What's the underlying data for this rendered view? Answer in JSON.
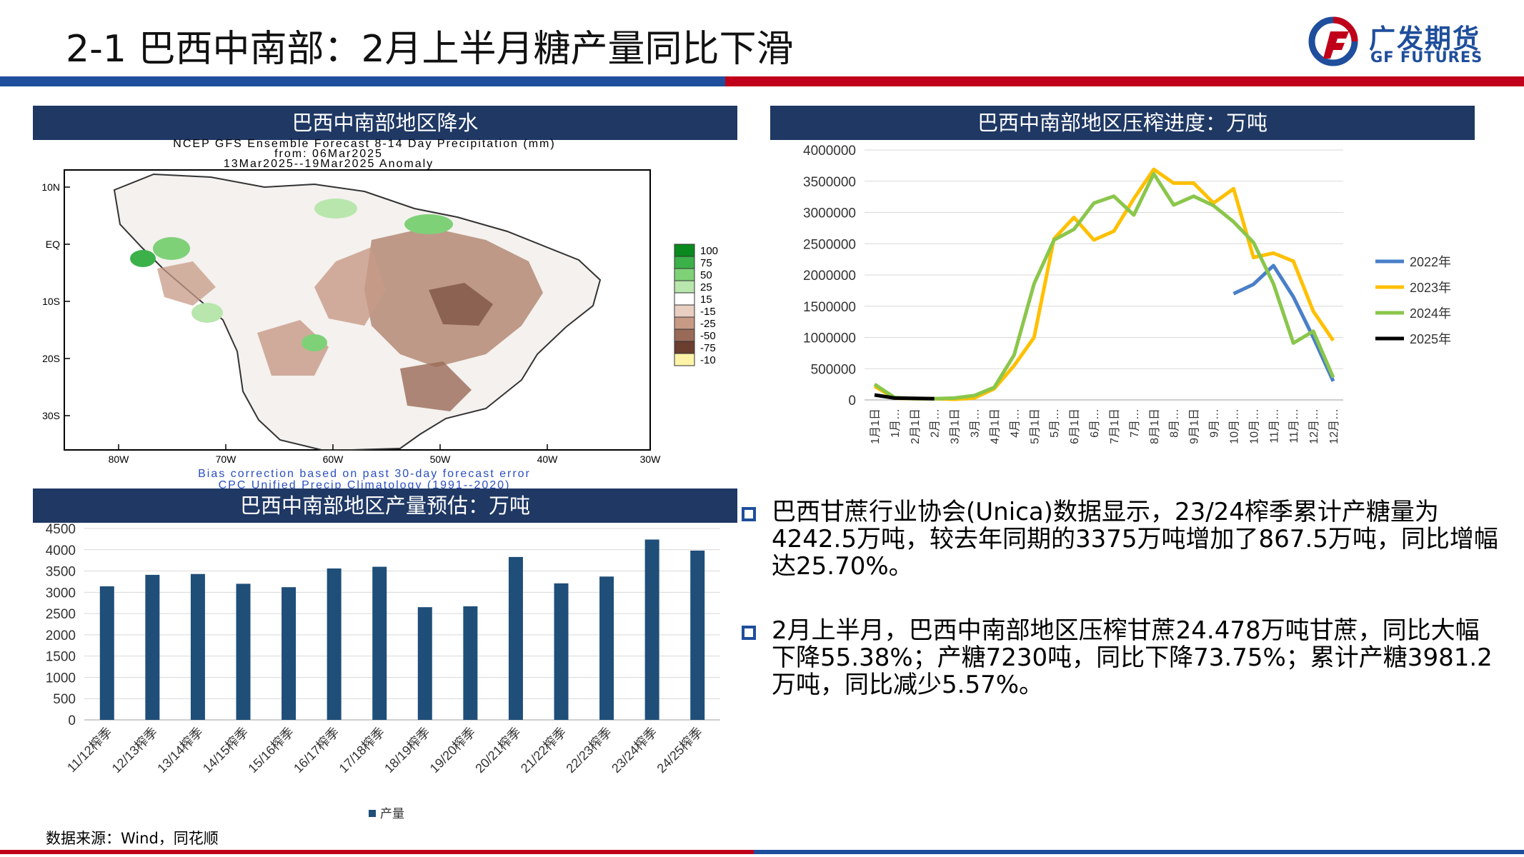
{
  "slide": {
    "title": "2-1 巴西中南部：2月上半月糖产量同比下滑",
    "logo_cn": "广发期货",
    "logo_en": "GF FUTURES",
    "source": "数据来源：Wind，同花顺"
  },
  "colors": {
    "blue": "#1f4e9c",
    "red": "#c0001a",
    "panel": "#1f3864",
    "bar": "#1f4e79"
  },
  "precip_panel": {
    "header": "巴西中南部地区降水",
    "map_title_1": "NCEP GFS Ensemble Forecast 8-14 Day Precipitation (mm)",
    "map_title_2": "from: 06Mar2025",
    "map_title_3": "13Mar2025--19Mar2025 Anomaly",
    "lat_labels": [
      "10N",
      "EQ",
      "10S",
      "20S",
      "30S"
    ],
    "lon_labels": [
      "80W",
      "70W",
      "60W",
      "50W",
      "40W",
      "30W"
    ],
    "legend": [
      {
        "label": "100",
        "color": "#0a8a1e"
      },
      {
        "label": "75",
        "color": "#3cb14a"
      },
      {
        "label": "50",
        "color": "#7fd178"
      },
      {
        "label": "25",
        "color": "#b8e6ad"
      },
      {
        "label": "15",
        "color": "#ffffff"
      },
      {
        "label": "-15",
        "color": "#e8cfc2"
      },
      {
        "label": "-25",
        "color": "#c79a86"
      },
      {
        "label": "-50",
        "color": "#9a6a58"
      },
      {
        "label": "-75",
        "color": "#6b3e30"
      },
      {
        "label": "-10",
        "color": "#fff3a8"
      }
    ],
    "footer_1": "Bias correction based on past 30-day forecast error",
    "footer_2": "CPC Unified Precip Climatology (1991--2020)"
  },
  "crush_panel": {
    "header": "巴西中南部地区压榨进度：万吨"
  },
  "production_panel": {
    "header": "巴西中南部地区产量预估：万吨"
  },
  "chart_data": [
    {
      "type": "line",
      "x": [
        "1月1日",
        "1月…",
        "2月1日",
        "2月…",
        "3月1日",
        "3月…",
        "4月1日",
        "4月…",
        "5月1日",
        "5月…",
        "6月1日",
        "6月…",
        "7月1日",
        "7月…",
        "8月1日",
        "8月…",
        "9月1日",
        "9月…",
        "10月…",
        "10月…",
        "11月…",
        "11月…",
        "12月…",
        "12月…"
      ],
      "ylim": [
        0,
        4000000
      ],
      "yticks": [
        "4000000",
        "3500000",
        "3000000",
        "2500000",
        "2000000",
        "1500000",
        "1000000",
        "500000",
        "0"
      ],
      "legend_position": "right",
      "grid": true,
      "series": [
        {
          "name": "2022年",
          "color": "#4a7fc9",
          "values": [
            null,
            null,
            null,
            null,
            null,
            null,
            null,
            null,
            null,
            null,
            null,
            null,
            null,
            null,
            null,
            null,
            null,
            null,
            1700000,
            1850000,
            2150000,
            1650000,
            1000000,
            300000
          ]
        },
        {
          "name": "2023年",
          "color": "#ffc000",
          "values": [
            220000,
            30000,
            20000,
            20000,
            10000,
            30000,
            180000,
            550000,
            1000000,
            2580000,
            2920000,
            2560000,
            2700000,
            3220000,
            3690000,
            3470000,
            3470000,
            3150000,
            3380000,
            2280000,
            2350000,
            2220000,
            1420000,
            950000
          ]
        },
        {
          "name": "2024年",
          "color": "#8ac64b",
          "values": [
            250000,
            40000,
            20000,
            20000,
            30000,
            70000,
            200000,
            720000,
            1860000,
            2560000,
            2730000,
            3150000,
            3260000,
            2960000,
            3620000,
            3120000,
            3260000,
            3110000,
            2850000,
            2520000,
            1860000,
            910000,
            1100000,
            360000
          ]
        },
        {
          "name": "2025年",
          "color": "#000000",
          "values": [
            80000,
            30000,
            25000,
            20000,
            null,
            null,
            null,
            null,
            null,
            null,
            null,
            null,
            null,
            null,
            null,
            null,
            null,
            null,
            null,
            null,
            null,
            null,
            null,
            null
          ]
        }
      ]
    },
    {
      "type": "bar",
      "categories": [
        "11/12榨季",
        "12/13榨季",
        "13/14榨季",
        "14/15榨季",
        "15/16榨季",
        "16/17榨季",
        "17/18榨季",
        "18/19榨季",
        "19/20榨季",
        "20/21榨季",
        "21/22榨季",
        "22/23榨季",
        "23/24榨季",
        "24/25榨季"
      ],
      "series": [
        {
          "name": "产量",
          "values": [
            3140,
            3410,
            3430,
            3200,
            3120,
            3560,
            3600,
            2650,
            2670,
            3830,
            3210,
            3370,
            4240,
            3980
          ]
        }
      ],
      "ylim": [
        0,
        4500
      ],
      "yticks": [
        "4500",
        "4000",
        "3500",
        "3000",
        "2500",
        "2000",
        "1500",
        "1000",
        "500",
        "0"
      ],
      "legend_position": "bottom",
      "grid": true
    }
  ],
  "bullets": [
    "巴西甘蔗行业协会(Unica)数据显示，23/24榨季累计产糖量为4242.5万吨，较去年同期的3375万吨增加了867.5万吨，同比增幅达25.70%。",
    "2月上半月，巴西中南部地区压榨甘蔗24.478万吨甘蔗，同比大幅下降55.38%；产糖7230吨，同比下降73.75%；累计产糖3981.2万吨，同比减少5.57%。"
  ]
}
